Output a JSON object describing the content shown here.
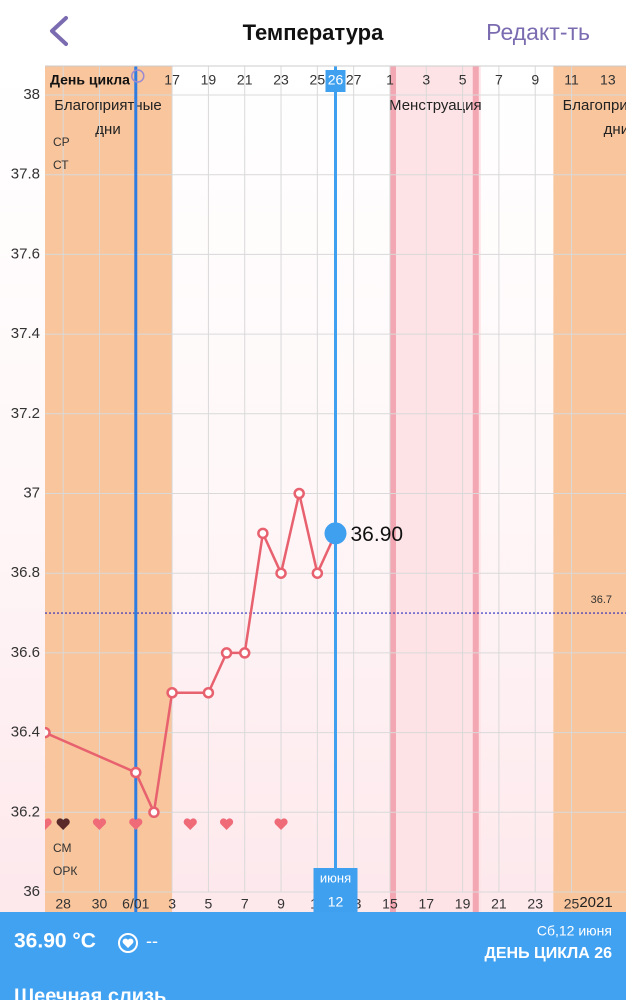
{
  "header": {
    "title": "Температура",
    "action": "Редакт-ть"
  },
  "chart_data": {
    "type": "line",
    "x_label": "День цикла",
    "x": [
      -1,
      4,
      5,
      6,
      8,
      9,
      10,
      11,
      12,
      13,
      14,
      15
    ],
    "series": [
      {
        "color": "#e8616f",
        "values": [
          36.4,
          36.3,
          36.2,
          36.5,
          36.5,
          36.6,
          36.6,
          36.9,
          36.8,
          37.0,
          36.8,
          36.9
        ]
      }
    ],
    "xlim": [
      -1,
      31
    ],
    "ylim": [
      36,
      38
    ],
    "yticks": [
      36,
      36.2,
      36.4,
      36.6,
      36.8,
      37,
      37.2,
      37.4,
      37.6,
      37.8,
      38
    ],
    "xticks": [
      {
        "value": 0,
        "label": "28"
      },
      {
        "value": 2,
        "label": "30"
      },
      {
        "value": 4,
        "label": "6/01"
      },
      {
        "value": 6,
        "label": "3"
      },
      {
        "value": 8,
        "label": "5"
      },
      {
        "value": 10,
        "label": "7"
      },
      {
        "value": 12,
        "label": "9"
      },
      {
        "value": 14,
        "label": "11"
      },
      {
        "value": 16,
        "label": "13"
      },
      {
        "value": 18,
        "label": "15"
      },
      {
        "value": 20,
        "label": "17"
      },
      {
        "value": 22,
        "label": "19"
      },
      {
        "value": 24,
        "label": "21"
      },
      {
        "value": 26,
        "label": "23"
      },
      {
        "value": 28,
        "label": "25"
      }
    ],
    "x2ticks": [
      {
        "value": 6,
        "label": "17"
      },
      {
        "value": 8,
        "label": "19"
      },
      {
        "value": 10,
        "label": "21"
      },
      {
        "value": 12,
        "label": "23"
      },
      {
        "value": 14,
        "label": "25"
      },
      {
        "value": 16,
        "label": "27"
      },
      {
        "value": 18,
        "label": "1"
      },
      {
        "value": 20,
        "label": "3"
      },
      {
        "value": 22,
        "label": "5"
      },
      {
        "value": 24,
        "label": "7"
      },
      {
        "value": 26,
        "label": "9"
      },
      {
        "value": 28,
        "label": "11"
      },
      {
        "value": 30,
        "label": "13"
      }
    ],
    "year_label": "2021",
    "grid": true,
    "bands": [
      {
        "label": "Благоприятные дни",
        "from": -1,
        "to": 6,
        "color": "#f8c59c"
      },
      {
        "label": "Менструация",
        "from": 18,
        "to": 23,
        "color": "#fde3e6"
      },
      {
        "label": "Благоприятные дни",
        "from": 27,
        "to": 31,
        "color": "#f8c59c"
      }
    ],
    "marker_line_x": 4,
    "reference_line": {
      "value": 36.7,
      "label": "36.7"
    },
    "selected": {
      "x": 15,
      "value": 36.9,
      "value_label": "36.90",
      "cycle_day": "26",
      "day": "12",
      "month": "июня"
    },
    "hearts": [
      -1,
      0,
      2,
      4,
      7,
      9,
      12
    ],
    "row_labels_top": [
      "СР",
      "СТ"
    ],
    "row_labels_bottom": [
      "СМ",
      "ОРК"
    ]
  },
  "footer": {
    "temperature": "36.90 °C",
    "mucus": "--",
    "date": "Сб,12 июня",
    "cycle_day": "ДЕНЬ ЦИКЛА 26",
    "next_section": "Шеечная слизь"
  }
}
